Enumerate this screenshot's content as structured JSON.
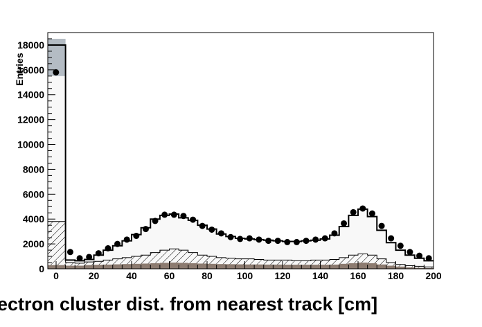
{
  "chart_data": {
    "type": "bar",
    "xlabel": "ectron cluster dist. from nearest track [cm]",
    "ylabel": "Entries",
    "xlim": [
      0,
      200
    ],
    "ylim": [
      0,
      19000
    ],
    "xticks": [
      0,
      20,
      40,
      60,
      80,
      100,
      120,
      140,
      160,
      180,
      200
    ],
    "yticks": [
      0,
      2000,
      4000,
      6000,
      8000,
      10000,
      12000,
      14000,
      16000,
      18000
    ],
    "bin_edges": [
      0,
      5,
      10,
      15,
      20,
      25,
      30,
      35,
      40,
      45,
      50,
      55,
      60,
      65,
      70,
      75,
      80,
      85,
      90,
      95,
      100,
      105,
      110,
      115,
      120,
      125,
      130,
      135,
      140,
      145,
      150,
      155,
      160,
      165,
      170,
      175,
      180,
      185,
      190,
      195,
      200
    ],
    "colors": {
      "hatched_component": "#000000",
      "brown_component": "#8c7b70",
      "uncertainty_band": "#b4bcc4",
      "total_open_area": "#f8f8f8"
    },
    "series": [
      {
        "style": "data-points",
        "values": [
          15800,
          1350,
          850,
          950,
          1250,
          1650,
          2000,
          2350,
          2650,
          3200,
          3850,
          4350,
          4350,
          4250,
          3950,
          3450,
          3150,
          2850,
          2550,
          2400,
          2450,
          2350,
          2250,
          2250,
          2150,
          2150,
          2250,
          2350,
          2450,
          2850,
          3650,
          4550,
          4850,
          4450,
          3450,
          2450,
          1850,
          1350,
          1050,
          850
        ]
      },
      {
        "style": "step-line",
        "values": [
          18000,
          700,
          650,
          750,
          1100,
          1500,
          1850,
          2250,
          2750,
          3300,
          4000,
          4300,
          4400,
          4100,
          3900,
          3500,
          3200,
          2800,
          2600,
          2450,
          2400,
          2350,
          2300,
          2250,
          2200,
          2200,
          2250,
          2300,
          2400,
          2700,
          3400,
          4300,
          4800,
          4200,
          3100,
          2100,
          1500,
          1100,
          850,
          650
        ]
      },
      {
        "style": "hatched-area",
        "values": [
          3800,
          500,
          450,
          550,
          600,
          700,
          800,
          900,
          1000,
          1100,
          1300,
          1500,
          1600,
          1500,
          1300,
          1100,
          1000,
          900,
          850,
          800,
          800,
          750,
          700,
          700,
          700,
          650,
          650,
          700,
          700,
          750,
          900,
          1100,
          1200,
          1100,
          800,
          500,
          350,
          250,
          200,
          150
        ]
      },
      {
        "style": "brown-area",
        "values": [
          300,
          250,
          250,
          300,
          320,
          340,
          360,
          380,
          400,
          420,
          450,
          480,
          500,
          480,
          450,
          420,
          400,
          380,
          370,
          360,
          350,
          350,
          340,
          340,
          330,
          330,
          330,
          330,
          330,
          340,
          400,
          450,
          500,
          450,
          350,
          250,
          180,
          120,
          80,
          60
        ]
      },
      {
        "style": "uncertainty-band",
        "values": [
          18500,
          0,
          0,
          0,
          0,
          0,
          0,
          0,
          0,
          0,
          0,
          0,
          0,
          0,
          0,
          0,
          0,
          0,
          0,
          0,
          0,
          0,
          0,
          0,
          0,
          0,
          0,
          0,
          0,
          0,
          0,
          0,
          0,
          0,
          0,
          0,
          0,
          0,
          0,
          0
        ]
      }
    ]
  }
}
